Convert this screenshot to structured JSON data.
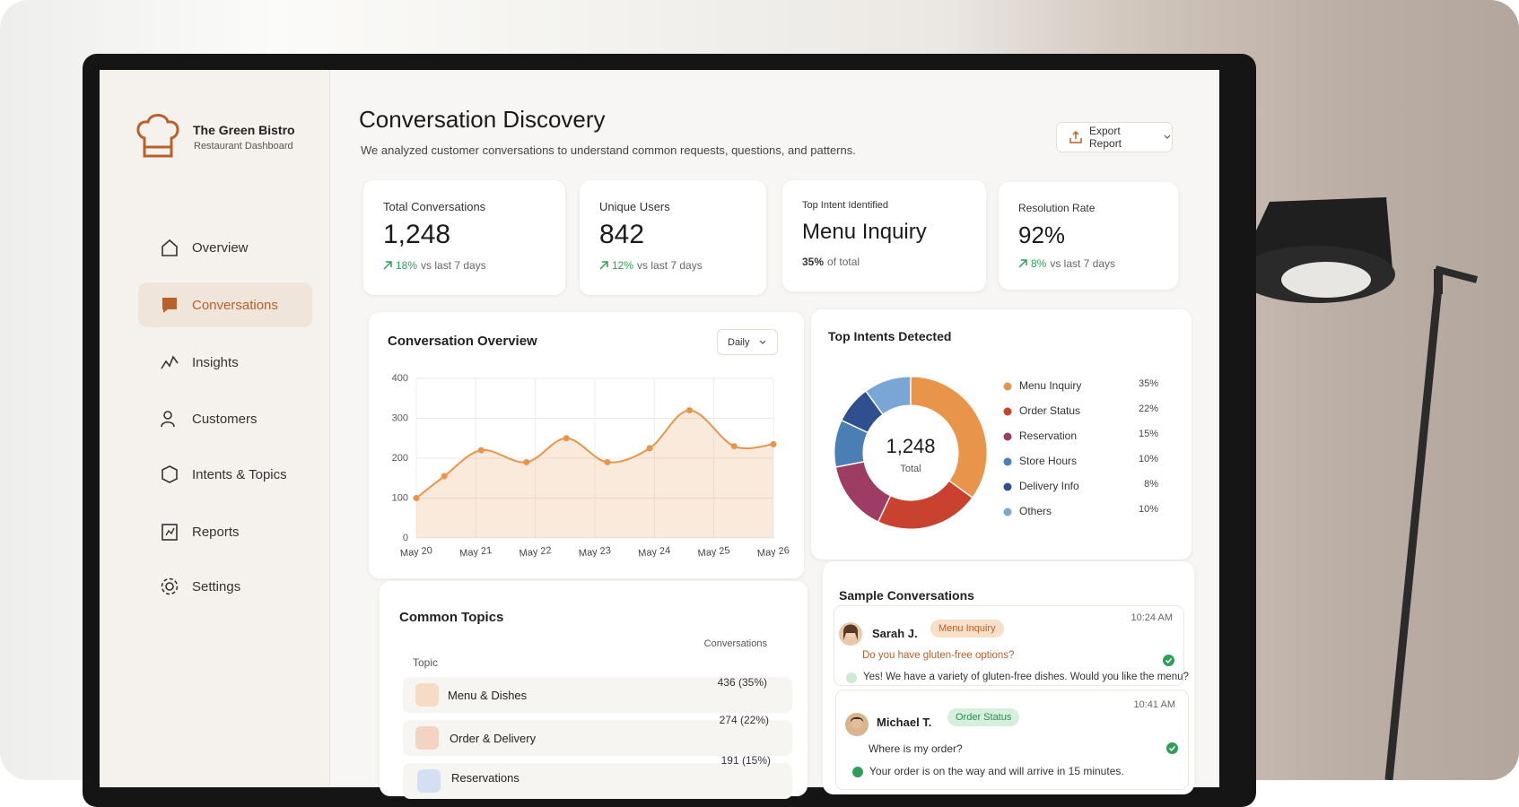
{
  "sidebar": {
    "brand": "The Green Bistro",
    "subtitle": "Restaurant Dashboard",
    "nav": [
      "Overview",
      "Conversations",
      "Insights",
      "Customers",
      "Intents & Topics",
      "Reports",
      "Settings"
    ]
  },
  "header": {
    "title": "Conversation Discovery",
    "description": "We analyzed customer conversations to understand common requests, questions, and patterns.",
    "export_button": "Export Report"
  },
  "kpis": [
    {
      "label": "Total Conversations",
      "value": "1,248",
      "change": "18%",
      "change_note": "vs last 7 days"
    },
    {
      "label": "Unique Users",
      "value": "842",
      "change": "12%",
      "change_note": "vs last 7 days"
    },
    {
      "label": "Top Intent Identified",
      "value": "Menu Inquiry",
      "change": "35%",
      "change_note": "of total"
    },
    {
      "label": "Resolution Rate",
      "value": "92%",
      "change": "8%",
      "change_note": "vs last 7 days"
    }
  ],
  "conversation_overview": {
    "type": "line",
    "title": "Conversation Overview",
    "period": "Daily",
    "color": "#e8944a",
    "x": [
      20,
      20.47,
      21.09,
      21.85,
      22.52,
      23.21,
      23.92,
      24.59,
      25.34,
      26
    ],
    "values": [
      100,
      155,
      220,
      190,
      250,
      190,
      225,
      320,
      230,
      235
    ],
    "xlim": [
      20,
      26
    ],
    "xticks": [
      {
        "value": 20,
        "label": "May 20"
      },
      {
        "value": 21,
        "label": "May 21"
      },
      {
        "value": 22,
        "label": "May 22"
      },
      {
        "value": 23,
        "label": "May 23"
      },
      {
        "value": 24,
        "label": "May 24"
      },
      {
        "value": 25,
        "label": "May 25"
      },
      {
        "value": 26,
        "label": "May 26"
      }
    ],
    "ylim": [
      0,
      400
    ],
    "yticks": [
      0,
      100,
      200,
      300,
      400
    ],
    "grid": true
  },
  "top_intents": {
    "type": "donut",
    "title": "Top Intents Detected",
    "center_value": "1,248",
    "center_label": "Total",
    "categories": [
      "Menu Inquiry",
      "Order Status",
      "Reservation",
      "Store Hours",
      "Delivery Info",
      "Others"
    ],
    "values": [
      35,
      22,
      15,
      10,
      8,
      10
    ],
    "value_labels": [
      "35%",
      "22%",
      "15%",
      "10%",
      "8%",
      "10%"
    ],
    "colors": [
      "#e8944a",
      "#c9412f",
      "#9e3d63",
      "#4a7fb5",
      "#2f4f8f",
      "#7aa6d6"
    ]
  },
  "common_topics": {
    "title": "Common Topics",
    "columns": [
      "Topic",
      "Conversations"
    ],
    "rows": [
      [
        "Menu & Dishes",
        "436 (35%)"
      ],
      [
        "Order & Delivery",
        "274 (22%)"
      ],
      [
        "Reservations",
        "191 (15%)"
      ]
    ]
  },
  "sample_conversations": {
    "title": "Sample Conversations",
    "items": [
      {
        "name": "Sarah J.",
        "tag": "Menu Inquiry",
        "time": "10:24 AM",
        "question": "Do you have gluten-free options?",
        "answer": "Yes! We have a variety of gluten-free dishes. Would you like the menu?"
      },
      {
        "name": "Michael T.",
        "tag": "Order Status",
        "time": "10:41 AM",
        "question": "Where is my order?",
        "answer": "Your order is on the way and will arrive in 15 minutes."
      }
    ]
  }
}
